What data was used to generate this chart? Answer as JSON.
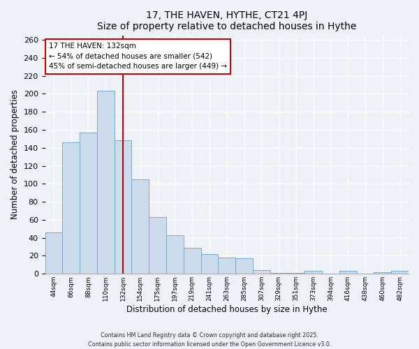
{
  "title": "17, THE HAVEN, HYTHE, CT21 4PJ",
  "subtitle": "Size of property relative to detached houses in Hythe",
  "xlabel": "Distribution of detached houses by size in Hythe",
  "ylabel": "Number of detached properties",
  "bar_labels": [
    "44sqm",
    "66sqm",
    "88sqm",
    "110sqm",
    "132sqm",
    "154sqm",
    "175sqm",
    "197sqm",
    "219sqm",
    "241sqm",
    "263sqm",
    "285sqm",
    "307sqm",
    "329sqm",
    "351sqm",
    "373sqm",
    "394sqm",
    "416sqm",
    "438sqm",
    "460sqm",
    "482sqm"
  ],
  "bar_values": [
    46,
    146,
    157,
    203,
    148,
    105,
    63,
    43,
    29,
    22,
    18,
    17,
    4,
    1,
    1,
    3,
    0,
    3,
    0,
    2,
    3
  ],
  "bar_color": "#ccdcec",
  "bar_edge_color": "#7aaac8",
  "vline_x_index": 4,
  "vline_color": "#cc0000",
  "annotation_title": "17 THE HAVEN: 132sqm",
  "annotation_line1": "← 54% of detached houses are smaller (542)",
  "annotation_line2": "45% of semi-detached houses are larger (449) →",
  "annotation_box_color": "#ffffff",
  "annotation_box_edge": "#cc0000",
  "ylim": [
    0,
    265
  ],
  "yticks": [
    0,
    20,
    40,
    60,
    80,
    100,
    120,
    140,
    160,
    180,
    200,
    220,
    240,
    260
  ],
  "footnote1": "Contains HM Land Registry data © Crown copyright and database right 2025.",
  "footnote2": "Contains public sector information licensed under the Open Government Licence v3.0.",
  "bg_color": "#eef2f7",
  "plot_bg_color": "#eef2f7",
  "grid_color": "#ffffff",
  "spine_color": "#aaaaaa"
}
